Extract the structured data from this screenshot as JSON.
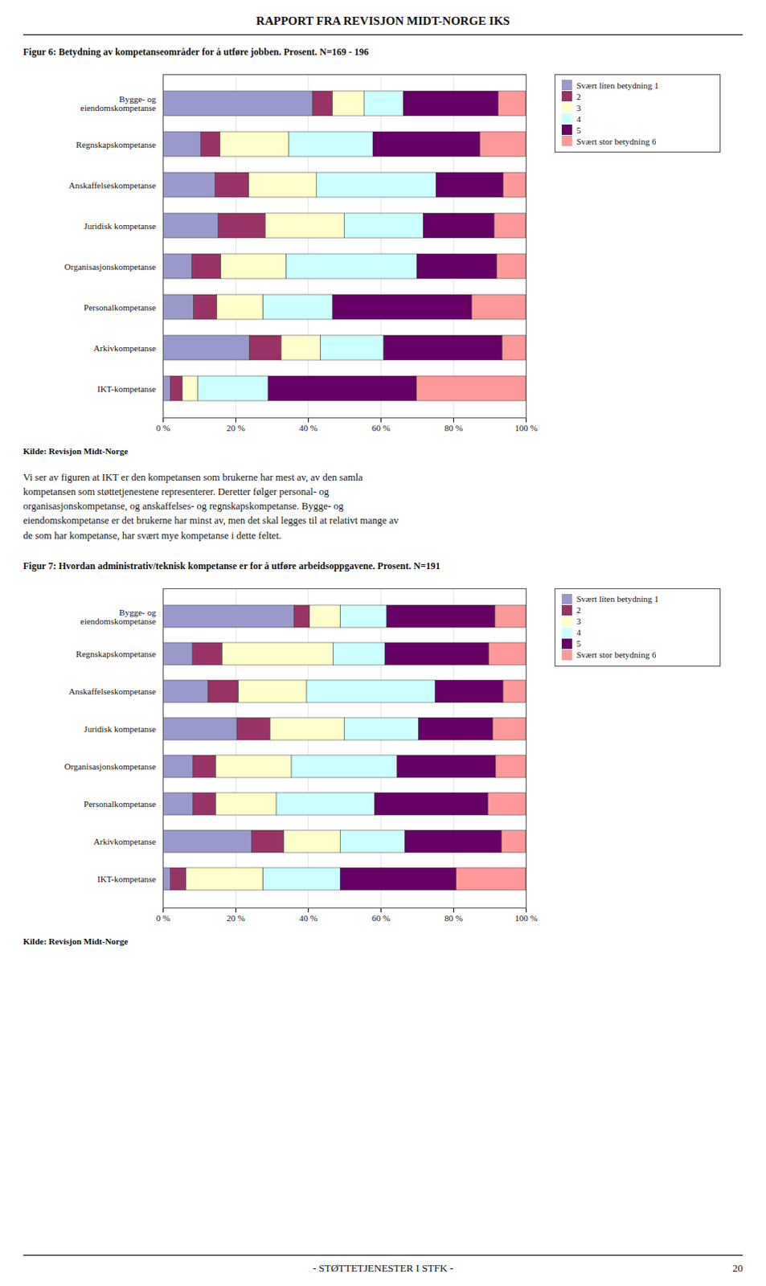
{
  "header": "RAPPORT FRA REVISJON MIDT-NORGE IKS",
  "body_text": "Vi ser av figuren at IKT er den kompetansen som brukerne har mest av, av den samla\nkompetansen som støttetjenestene representerer. Deretter følger personal- og\norganisasjonskompetanse, og anskaffelses- og regnskapskompetanse. Bygge- og\neiendomskompetanse er det brukerne har minst av, men det skal legges til at relativt mange av\nde som har kompetanse, har svært mye kompetanse i dette feltet.",
  "footer": "- STØTTETJENESTER I STFK -",
  "page_number": "20",
  "chart_data": [
    {
      "type": "bar",
      "orientation": "horizontal",
      "stacked": true,
      "grid": true,
      "legend": "right",
      "title": "Figur 6: Betydning av kompetanseområder for å utføre jobben. Prosent. N=169 - 196",
      "source": "Kilde: Revisjon Midt-Norge",
      "categories": [
        "Bygge- og\neiendomskompetanse",
        "Regnskapskompetanse",
        "Anskaffelseskompetanse",
        "Juridisk kompetanse",
        "Organisasjonskompetanse",
        "Personalkompetanse",
        "Arkivkompetanse",
        "IKT-kompetanse"
      ],
      "xlim": [
        0,
        100
      ],
      "xticks": [
        {
          "value": 0,
          "label": "0 %"
        },
        {
          "value": 20,
          "label": "20 %"
        },
        {
          "value": 40,
          "label": "40 %"
        },
        {
          "value": 60,
          "label": "60 %"
        },
        {
          "value": 80,
          "label": "80 %"
        },
        {
          "value": 100,
          "label": "100 %"
        }
      ],
      "series": [
        {
          "name": "Svært liten betydning 1",
          "color": "#9999cc",
          "values": [
            41.3,
            10.52,
            14.43,
            15.21,
            8,
            8.51,
            23.91,
            2.15
          ]
        },
        {
          "name": "2",
          "color": "#993366",
          "values": [
            5.43,
            5.26,
            9.27,
            13.04,
            8,
            6.38,
            8.69,
            3.22
          ]
        },
        {
          "name": "3",
          "color": "#ffffcc",
          "values": [
            8.69,
            18.94,
            18.55,
            21.73,
            18,
            12.76,
            10.86,
            4.3
          ]
        },
        {
          "name": "4",
          "color": "#ccffff",
          "values": [
            10.86,
            23.15,
            32.98,
            21.73,
            36,
            19.14,
            17.39,
            19.35
          ]
        },
        {
          "name": "5",
          "color": "#660066",
          "values": [
            26.08,
            29.47,
            18.55,
            19.56,
            22,
            38.29,
            32.6,
            40.86
          ]
        },
        {
          "name": "Svært stor betydning 6",
          "color": "#ff9999",
          "values": [
            7.6,
            12.63,
            6.18,
            8.69,
            8,
            14.89,
            6.52,
            30.1
          ]
        }
      ]
    },
    {
      "type": "bar",
      "orientation": "horizontal",
      "stacked": true,
      "grid": true,
      "legend": "right",
      "title": "Figur 7: Hvordan administrativ/teknisk kompetanse er for å utføre arbeidsoppgavene. Prosent. N=191",
      "source": "Kilde: Revisjon Midt-Norge",
      "categories": [
        "Bygge- og\neiendomskompetanse",
        "Regnskapskompetanse",
        "Anskaffelseskompetanse",
        "Juridisk kompetanse",
        "Organisasjonskompetanse",
        "Personalkompetanse",
        "Arkivkompetanse",
        "IKT-kompetanse"
      ],
      "xlim": [
        0,
        100
      ],
      "xticks": [
        {
          "value": 0,
          "label": "0 %"
        },
        {
          "value": 20,
          "label": "20 %"
        },
        {
          "value": 40,
          "label": "40 %"
        },
        {
          "value": 60,
          "label": "60 %"
        },
        {
          "value": 80,
          "label": "80 %"
        },
        {
          "value": 100,
          "label": "100 %"
        }
      ],
      "series": [
        {
          "name": "Svært liten betydning 1",
          "color": "#9999cc",
          "values": [
            36.17,
            8.16,
            12.5,
            20.45,
            8.33,
            8.33,
            24.44,
            2.12
          ]
        },
        {
          "name": "2",
          "color": "#993366",
          "values": [
            4.25,
            8.16,
            8.33,
            9.09,
            6.25,
            6.25,
            8.88,
            4.25
          ]
        },
        {
          "name": "3",
          "color": "#ffffcc",
          "values": [
            8.51,
            30.61,
            18.75,
            20.45,
            20.83,
            16.66,
            15.55,
            21.27
          ]
        },
        {
          "name": "4",
          "color": "#ccffff",
          "values": [
            12.76,
            14.28,
            35.41,
            20.45,
            29.16,
            27.08,
            17.77,
            21.27
          ]
        },
        {
          "name": "5",
          "color": "#660066",
          "values": [
            29.78,
            28.57,
            18.75,
            20.45,
            27.08,
            31.25,
            26.66,
            31.91
          ]
        },
        {
          "name": "Svært stor betydning 6",
          "color": "#ff9999",
          "values": [
            8.51,
            10.2,
            6.25,
            9.09,
            8.33,
            10.41,
            6.66,
            19.14
          ]
        }
      ]
    }
  ]
}
